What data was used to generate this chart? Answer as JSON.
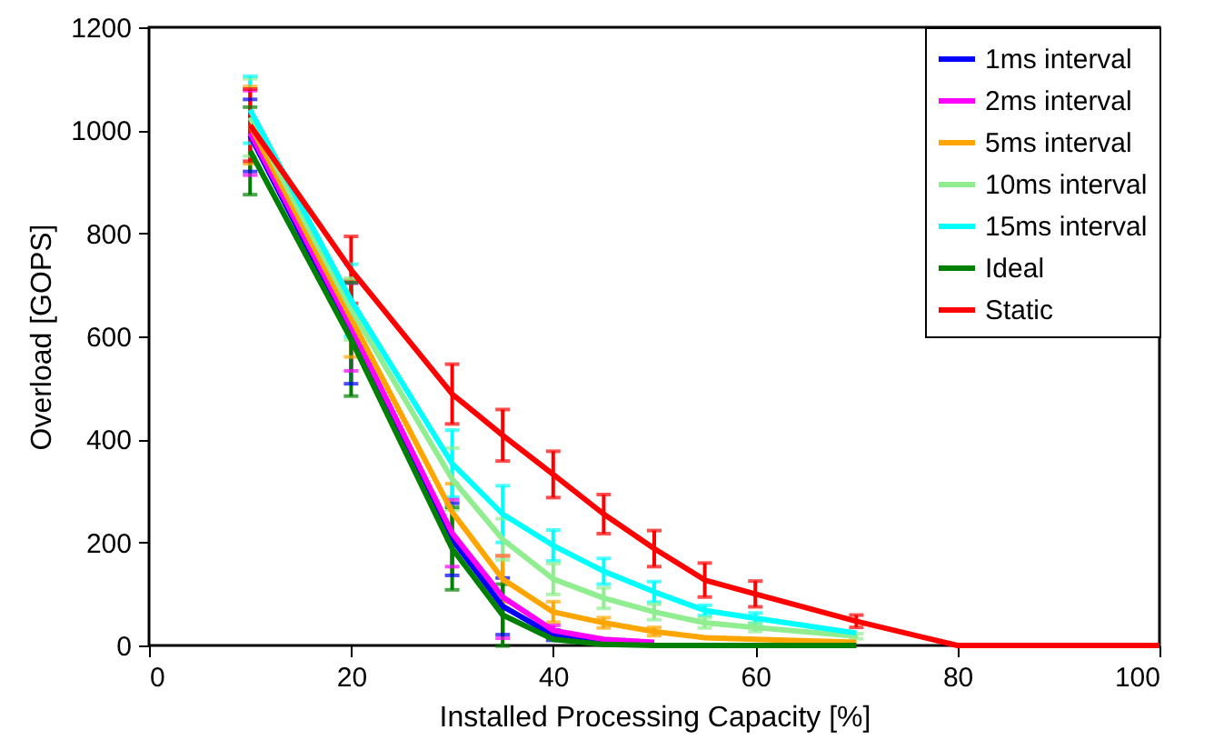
{
  "chart_data": {
    "type": "line",
    "xlabel": "Installed Processing Capacity [%]",
    "ylabel": "Overload [GOPS]",
    "x": [
      10,
      20,
      30,
      35,
      40,
      45,
      50,
      55,
      60,
      70,
      80,
      100
    ],
    "xlim": [
      0,
      100
    ],
    "xticks": [
      0,
      20,
      40,
      60,
      80,
      100
    ],
    "ylim": [
      0,
      1200
    ],
    "yticks": [
      0,
      200,
      400,
      600,
      800,
      1000,
      1200
    ],
    "grid": false,
    "legend": "top right",
    "marker": "none",
    "line_style": "solid",
    "series": [
      {
        "name": "1ms interval",
        "color": "#0000ff",
        "values": [
          990,
          608,
          206,
          76,
          20,
          6,
          null,
          null,
          null,
          null,
          null,
          null
        ],
        "errors": [
          70,
          100,
          70,
          55,
          10,
          null,
          null,
          null,
          null,
          null,
          null,
          null
        ]
      },
      {
        "name": "2ms interval",
        "color": "#ff00ff",
        "values": [
          995,
          618,
          218,
          94,
          29,
          12,
          6,
          null,
          null,
          null,
          null,
          null
        ],
        "errors": [
          82,
          85,
          65,
          80,
          10,
          null,
          null,
          null,
          null,
          null,
          null,
          null
        ]
      },
      {
        "name": "5ms interval",
        "color": "#ffa500",
        "values": [
          1010,
          635,
          259,
          129,
          65,
          44,
          27,
          15,
          12,
          6,
          null,
          null
        ],
        "errors": [
          75,
          75,
          55,
          45,
          20,
          10,
          8,
          null,
          null,
          null,
          null,
          null
        ]
      },
      {
        "name": "10ms interval",
        "color": "#90ee90",
        "values": [
          1025,
          653,
          323,
          206,
          129,
          92,
          65,
          44,
          35,
          18,
          null,
          null
        ],
        "errors": [
          75,
          60,
          60,
          40,
          30,
          20,
          15,
          10,
          8,
          5,
          null,
          null
        ]
      },
      {
        "name": "15ms interval",
        "color": "#00ffff",
        "values": [
          1040,
          670,
          353,
          255,
          194,
          144,
          104,
          68,
          53,
          24,
          null,
          null
        ],
        "errors": [
          65,
          70,
          65,
          55,
          30,
          25,
          20,
          10,
          10,
          null,
          null,
          null
        ]
      },
      {
        "name": "Ideal",
        "color": "#008000",
        "values": [
          960,
          594,
          188,
          59,
          12,
          2,
          0,
          0,
          0,
          0,
          null,
          null
        ],
        "errors": [
          85,
          110,
          80,
          60,
          null,
          null,
          null,
          null,
          null,
          null,
          null,
          null
        ]
      },
      {
        "name": "Static",
        "color": "#ff0000",
        "values": [
          1010,
          729,
          488,
          408,
          332,
          255,
          188,
          127,
          100,
          47,
          0,
          0
        ],
        "errors": [
          70,
          65,
          58,
          50,
          45,
          38,
          35,
          33,
          25,
          12,
          null,
          null
        ]
      }
    ]
  }
}
